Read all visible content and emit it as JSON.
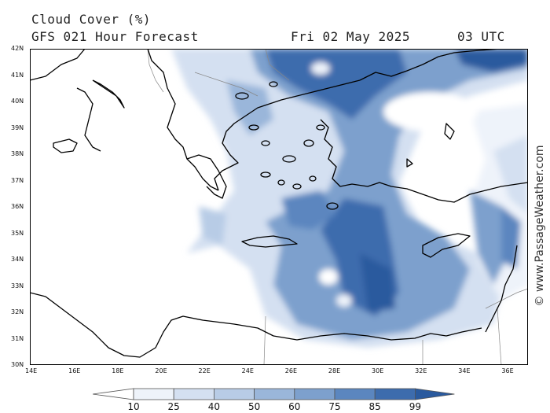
{
  "header": {
    "title": "Cloud Cover (%)",
    "subtitle": "GFS 021 Hour Forecast",
    "date": "Fri 02 May 2025",
    "time": "03 UTC"
  },
  "credit": "© www.PassageWeather.com",
  "map": {
    "lat_labels": [
      "42N",
      "41N",
      "40N",
      "39N",
      "38N",
      "37N",
      "36N",
      "35N",
      "34N",
      "33N",
      "32N",
      "31N",
      "30N"
    ],
    "lon_labels": [
      "14E",
      "16E",
      "18E",
      "20E",
      "22E",
      "24E",
      "26E",
      "28E",
      "30E",
      "32E",
      "34E",
      "36E"
    ],
    "lat_range": [
      30,
      42
    ],
    "lon_range": [
      14,
      37
    ]
  },
  "legend": {
    "labels": [
      "10",
      "25",
      "40",
      "50",
      "60",
      "75",
      "85",
      "99"
    ],
    "colors": [
      "#ffffff",
      "#eef3fa",
      "#d4e0f1",
      "#b8cce6",
      "#9ab6da",
      "#7da0cd",
      "#5b86bf",
      "#3d6cad",
      "#2a5a9e"
    ]
  }
}
